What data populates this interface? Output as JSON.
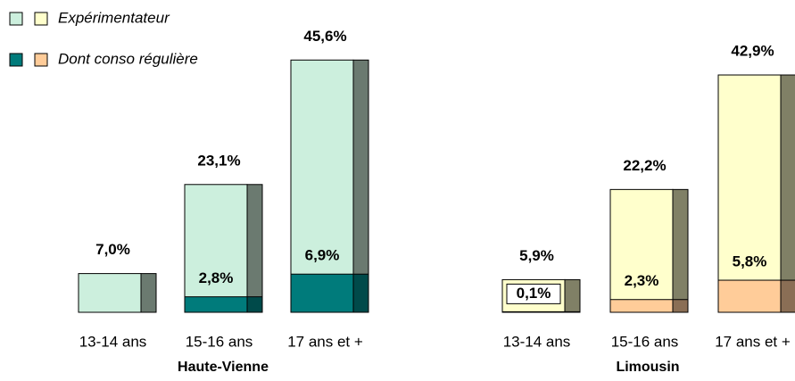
{
  "chart_data": [
    {
      "type": "bar",
      "x_label": "Haute-Vienne",
      "categories": [
        "13-14 ans",
        "15-16 ans",
        "17 ans et +"
      ],
      "series": [
        {
          "name": "Expérimentateur",
          "color": "#ccefdd",
          "side_color": "#6b7a70",
          "values": [
            7.0,
            23.1,
            45.6
          ],
          "value_labels": [
            "7,0%",
            "23,1%",
            "45,6%"
          ]
        },
        {
          "name": "Dont conso régulière",
          "color": "#007b7b",
          "side_color": "#004a4a",
          "values": [
            null,
            2.8,
            6.9
          ],
          "value_labels": [
            null,
            "2,8%",
            "6,9%"
          ]
        }
      ]
    },
    {
      "type": "bar",
      "x_label": "Limousin",
      "categories": [
        "13-14 ans",
        "15-16 ans",
        "17 ans et +"
      ],
      "series": [
        {
          "color": "#ffffcc",
          "side_color": "#808066",
          "values": [
            5.9,
            22.2,
            42.9
          ],
          "value_labels": [
            "5,9%",
            "22,2%",
            "42,9%"
          ]
        },
        {
          "color": "#ffcc99",
          "side_color": "#8a6e55",
          "values": [
            0.1,
            2.3,
            5.8
          ],
          "value_labels": [
            "0,1%",
            "2,3%",
            "5,8%"
          ]
        }
      ]
    }
  ]
}
